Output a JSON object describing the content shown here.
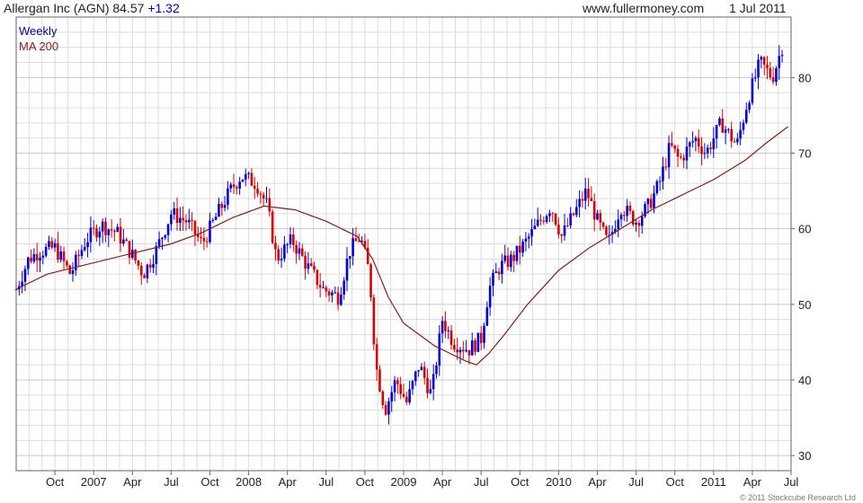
{
  "header": {
    "ticker_text": "Allergan Inc (AGN)",
    "last_price": "84.57",
    "change": "+1.32",
    "site": "www.fullermoney.com",
    "date": "1 Jul 2011"
  },
  "legend": {
    "period": "Weekly",
    "ma_label": "MA 200"
  },
  "copyright": "© 2011 Stockcube Research Ltd",
  "colors": {
    "up": "#0000dd",
    "down": "#dd0000",
    "ma": "#8b1a1a",
    "grid": "#dddddd",
    "change": "#0000cc"
  },
  "chart_data": {
    "type": "candlestick",
    "title": "Allergan Inc (AGN) 84.57 +1.32",
    "x_range": [
      "2006-07",
      "2011-07"
    ],
    "ylim": [
      28,
      88
    ],
    "y_ticks": [
      30,
      40,
      50,
      60,
      70,
      80
    ],
    "x_ticks": [
      "Oct",
      "2007",
      "Apr",
      "Jul",
      "Oct",
      "2008",
      "Apr",
      "Jul",
      "Oct",
      "2009",
      "Apr",
      "Jul",
      "Oct",
      "2010",
      "Apr",
      "Jul",
      "Oct",
      "2011",
      "Apr",
      "Jul"
    ],
    "grid": true,
    "legend_position": "top-left",
    "price_series": {
      "name": "Weekly",
      "points": [
        [
          2006.5,
          52
        ],
        [
          2006.58,
          56
        ],
        [
          2006.65,
          57
        ],
        [
          2006.75,
          57.5
        ],
        [
          2006.85,
          54
        ],
        [
          2006.95,
          58.5
        ],
        [
          2007.05,
          60.5
        ],
        [
          2007.15,
          59.5
        ],
        [
          2007.25,
          56.5
        ],
        [
          2007.32,
          54
        ],
        [
          2007.4,
          57
        ],
        [
          2007.5,
          62
        ],
        [
          2007.6,
          61
        ],
        [
          2007.7,
          58
        ],
        [
          2007.8,
          62
        ],
        [
          2007.88,
          65
        ],
        [
          2007.95,
          67
        ],
        [
          2008.05,
          66
        ],
        [
          2008.12,
          63
        ],
        [
          2008.18,
          56
        ],
        [
          2008.28,
          58.5
        ],
        [
          2008.38,
          55
        ],
        [
          2008.48,
          52
        ],
        [
          2008.58,
          51
        ],
        [
          2008.65,
          57
        ],
        [
          2008.72,
          59
        ],
        [
          2008.78,
          54
        ],
        [
          2008.82,
          42
        ],
        [
          2008.88,
          36
        ],
        [
          2008.95,
          40
        ],
        [
          2009.02,
          37
        ],
        [
          2009.1,
          42
        ],
        [
          2009.18,
          38
        ],
        [
          2009.25,
          48
        ],
        [
          2009.32,
          45
        ],
        [
          2009.42,
          44
        ],
        [
          2009.5,
          45.5
        ],
        [
          2009.55,
          52
        ],
        [
          2009.62,
          55
        ],
        [
          2009.7,
          56
        ],
        [
          2009.78,
          58
        ],
        [
          2009.88,
          61
        ],
        [
          2009.95,
          63
        ],
        [
          2010.02,
          59
        ],
        [
          2010.1,
          62
        ],
        [
          2010.18,
          65
        ],
        [
          2010.25,
          61
        ],
        [
          2010.32,
          58
        ],
        [
          2010.4,
          63
        ],
        [
          2010.5,
          61
        ],
        [
          2010.58,
          63
        ],
        [
          2010.65,
          66
        ],
        [
          2010.72,
          71
        ],
        [
          2010.78,
          69
        ],
        [
          2010.88,
          72
        ],
        [
          2010.95,
          70
        ],
        [
          2011.05,
          74
        ],
        [
          2011.15,
          71
        ],
        [
          2011.22,
          77
        ],
        [
          2011.3,
          82
        ],
        [
          2011.38,
          80
        ],
        [
          2011.45,
          84.57
        ]
      ]
    },
    "ma_series": {
      "name": "MA 200",
      "points": [
        [
          2006.5,
          52
        ],
        [
          2006.7,
          54
        ],
        [
          2006.9,
          55
        ],
        [
          2007.1,
          56
        ],
        [
          2007.3,
          57
        ],
        [
          2007.5,
          58
        ],
        [
          2007.7,
          59.5
        ],
        [
          2007.9,
          61.5
        ],
        [
          2008.1,
          63
        ],
        [
          2008.3,
          62.5
        ],
        [
          2008.5,
          61
        ],
        [
          2008.7,
          59
        ],
        [
          2008.8,
          56
        ],
        [
          2008.9,
          51
        ],
        [
          2009.0,
          47.5
        ],
        [
          2009.1,
          46
        ],
        [
          2009.2,
          44.5
        ],
        [
          2009.3,
          43.5
        ],
        [
          2009.4,
          42.5
        ],
        [
          2009.47,
          42
        ],
        [
          2009.55,
          43.5
        ],
        [
          2009.65,
          46
        ],
        [
          2009.8,
          50
        ],
        [
          2010.0,
          54.5
        ],
        [
          2010.2,
          57.5
        ],
        [
          2010.4,
          60
        ],
        [
          2010.6,
          62.5
        ],
        [
          2010.8,
          64.5
        ],
        [
          2011.0,
          66.5
        ],
        [
          2011.2,
          69
        ],
        [
          2011.35,
          71.5
        ],
        [
          2011.48,
          73.5
        ]
      ]
    }
  }
}
